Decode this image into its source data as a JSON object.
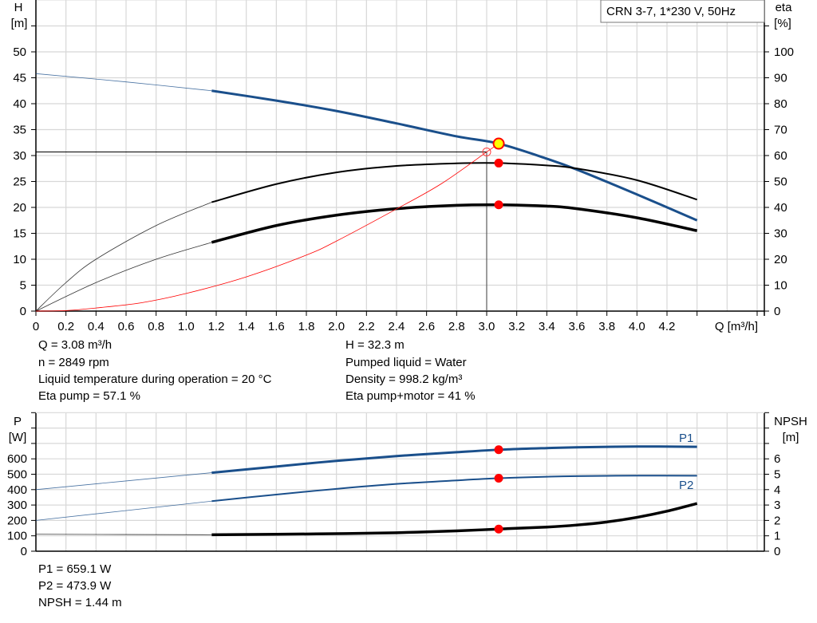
{
  "chart_data": [
    {
      "type": "line",
      "title": "CRN 3-7, 1*230 V, 50Hz",
      "xlabel": "Q [m³/h]",
      "ylabel_left": {
        "name": "H",
        "unit": "[m]"
      },
      "ylabel_right": {
        "name": "eta",
        "unit": "[%]"
      },
      "xlim": [
        0,
        4.85
      ],
      "ylim_left": [
        0,
        55
      ],
      "ylim_right": [
        0,
        110
      ],
      "x_ticks": [
        "0",
        "0.2",
        "0.4",
        "0.6",
        "0.8",
        "1.0",
        "1.2",
        "1.4",
        "1.6",
        "1.8",
        "2.0",
        "2.2",
        "2.4",
        "2.6",
        "2.8",
        "3.0",
        "3.2",
        "3.4",
        "3.6",
        "3.8",
        "4.0",
        "4.2"
      ],
      "y_ticks_left": [
        "0",
        "5",
        "10",
        "15",
        "20",
        "25",
        "30",
        "35",
        "40",
        "45",
        "50"
      ],
      "y_ticks_right": [
        "0",
        "10",
        "20",
        "30",
        "40",
        "50",
        "60",
        "70",
        "80",
        "90",
        "100"
      ],
      "grid": true,
      "series": [
        {
          "key": "H",
          "axis": "left",
          "color": "#1a4f8b",
          "thin_until": 1.17,
          "x": [
            0,
            0.6,
            1.17,
            1.6,
            2.0,
            2.4,
            2.8,
            3.08,
            3.4,
            3.6,
            4.0,
            4.4
          ],
          "y": [
            45.8,
            44.2,
            42.5,
            40.6,
            38.6,
            36.2,
            33.7,
            32.3,
            29.4,
            27.3,
            22.5,
            17.5
          ]
        },
        {
          "key": "eta_pump",
          "axis": "right",
          "color": "#000000",
          "thin_until": 1.17,
          "x": [
            0,
            0.2,
            0.4,
            0.8,
            1.17,
            1.6,
            2.0,
            2.4,
            2.8,
            3.08,
            3.4,
            3.6,
            4.0,
            4.4
          ],
          "y": [
            0,
            11,
            20,
            33,
            42,
            49,
            53.5,
            56,
            57,
            57.1,
            56.2,
            55,
            50.5,
            43
          ]
        },
        {
          "key": "eta_pump_motor",
          "axis": "right",
          "color": "#000000",
          "thin_until": 1.17,
          "x": [
            0,
            0.4,
            0.8,
            1.17,
            1.6,
            2.0,
            2.4,
            2.8,
            3.08,
            3.4,
            3.6,
            4.0,
            4.4
          ],
          "y": [
            0,
            11,
            20,
            26.5,
            33,
            37,
            39.5,
            40.8,
            41,
            40.5,
            39.5,
            36,
            31
          ]
        },
        {
          "key": "system_curve",
          "axis": "left",
          "color": "#ff0000",
          "x": [
            0,
            0.2,
            0.4,
            0.7,
            1.0,
            1.4,
            1.8,
            2.0,
            2.4,
            2.7,
            3.0
          ],
          "y": [
            0,
            0.1,
            0.6,
            1.6,
            3.4,
            6.6,
            10.8,
            13.5,
            19.7,
            24.6,
            30.7
          ]
        }
      ],
      "operating_point": {
        "Q": 3.08,
        "H": 32.3,
        "eta_pump": 57.1,
        "eta_pump_motor": 41
      },
      "requested_point": {
        "Q": 3.0,
        "H": 30.7
      }
    },
    {
      "type": "line",
      "ylabel_left": {
        "name": "P",
        "unit": "[W]"
      },
      "ylabel_right": {
        "name": "NPSH",
        "unit": "[m]"
      },
      "xlim": [
        0,
        4.85
      ],
      "ylim_left": [
        0,
        900
      ],
      "ylim_right": [
        0,
        9
      ],
      "y_ticks_left": [
        "0",
        "100",
        "200",
        "300",
        "400",
        "500",
        "600"
      ],
      "y_ticks_right": [
        "0",
        "1",
        "2",
        "3",
        "4",
        "5",
        "6"
      ],
      "grid": true,
      "series": [
        {
          "key": "P1",
          "name": "P1",
          "axis": "left",
          "color": "#1a4f8b",
          "thin_until": 1.17,
          "x": [
            0,
            1.17,
            1.6,
            2.0,
            2.4,
            2.8,
            3.08,
            3.4,
            3.6,
            4.0,
            4.4
          ],
          "y": [
            400,
            510,
            550,
            587,
            618,
            643,
            659,
            670,
            675,
            680,
            678
          ]
        },
        {
          "key": "P2",
          "name": "P2",
          "axis": "left",
          "color": "#1a4f8b",
          "thin_until": 1.17,
          "x": [
            0,
            1.17,
            1.6,
            2.0,
            2.4,
            2.8,
            3.08,
            3.4,
            3.6,
            4.0,
            4.4
          ],
          "y": [
            200,
            325,
            368,
            405,
            437,
            460,
            474,
            484,
            488,
            491,
            490
          ]
        },
        {
          "key": "NPSH",
          "axis": "right",
          "color": "#000000",
          "thin_until": 1.17,
          "x": [
            0,
            1.17,
            1.6,
            2.0,
            2.4,
            2.8,
            3.08,
            3.4,
            3.6,
            3.8,
            4.0,
            4.2,
            4.4
          ],
          "y": [
            1.1,
            1.07,
            1.1,
            1.14,
            1.2,
            1.32,
            1.44,
            1.57,
            1.7,
            1.9,
            2.2,
            2.6,
            3.1
          ]
        }
      ],
      "operating_point": {
        "Q": 3.08,
        "P1": 659.1,
        "P2": 473.9,
        "NPSH": 1.44
      }
    }
  ],
  "info_top": {
    "q": "Q = 3.08 m³/h",
    "n": "n = 2849 rpm",
    "temp": "Liquid temperature during operation = 20 °C",
    "eta_pump": "Eta pump = 57.1 %",
    "h": "H = 32.3 m",
    "liquid": "Pumped liquid = Water",
    "density": "Density = 998.2 kg/m³",
    "eta_total": "Eta pump+motor = 41 %"
  },
  "info_bottom": {
    "p1": "P1 = 659.1 W",
    "p2": "P2 = 473.9 W",
    "npsh": "NPSH = 1.44 m"
  }
}
